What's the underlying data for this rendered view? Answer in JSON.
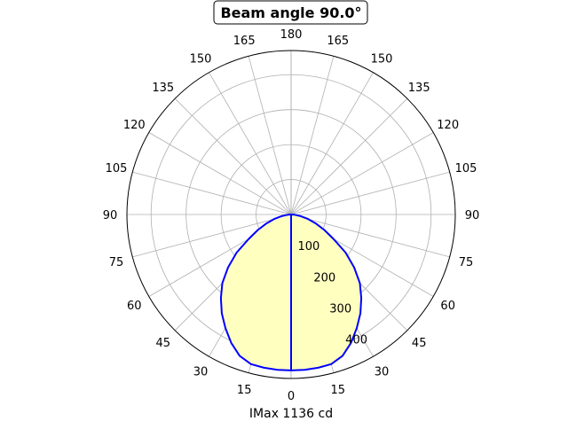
{
  "chart_data": {
    "type": "polar",
    "title": "Beam angle 90.0°",
    "xlabel": "IMax 1136 cd",
    "rlim": [
      0,
      469
    ],
    "r_ticks": [
      100,
      200,
      300,
      400
    ],
    "angle_ticks": [
      {
        "angle": 0,
        "label": "0"
      },
      {
        "angle": 15,
        "label": "15"
      },
      {
        "angle": 30,
        "label": "30"
      },
      {
        "angle": 45,
        "label": "45"
      },
      {
        "angle": 60,
        "label": "60"
      },
      {
        "angle": 75,
        "label": "75"
      },
      {
        "angle": 90,
        "label": "90"
      },
      {
        "angle": 105,
        "label": "105"
      },
      {
        "angle": 120,
        "label": "120"
      },
      {
        "angle": 135,
        "label": "135"
      },
      {
        "angle": 150,
        "label": "150"
      },
      {
        "angle": 165,
        "label": "165"
      },
      {
        "angle": 180,
        "label": "180"
      }
    ],
    "grid": true,
    "symmetric": true,
    "series": [
      {
        "angles": [
          0,
          5,
          10,
          15,
          20,
          25,
          30,
          35,
          40,
          45,
          50,
          55,
          60,
          65,
          70,
          75,
          80,
          85,
          90
        ],
        "values": [
          446,
          446,
          445,
          443,
          430,
          405,
          375,
          345,
          312,
          278,
          235,
          190,
          140,
          105,
          75,
          50,
          28,
          10,
          0
        ]
      }
    ],
    "colors": {
      "line": "#0000ff",
      "fill": "#ffffc0",
      "grid": "#b0b0b0"
    }
  }
}
